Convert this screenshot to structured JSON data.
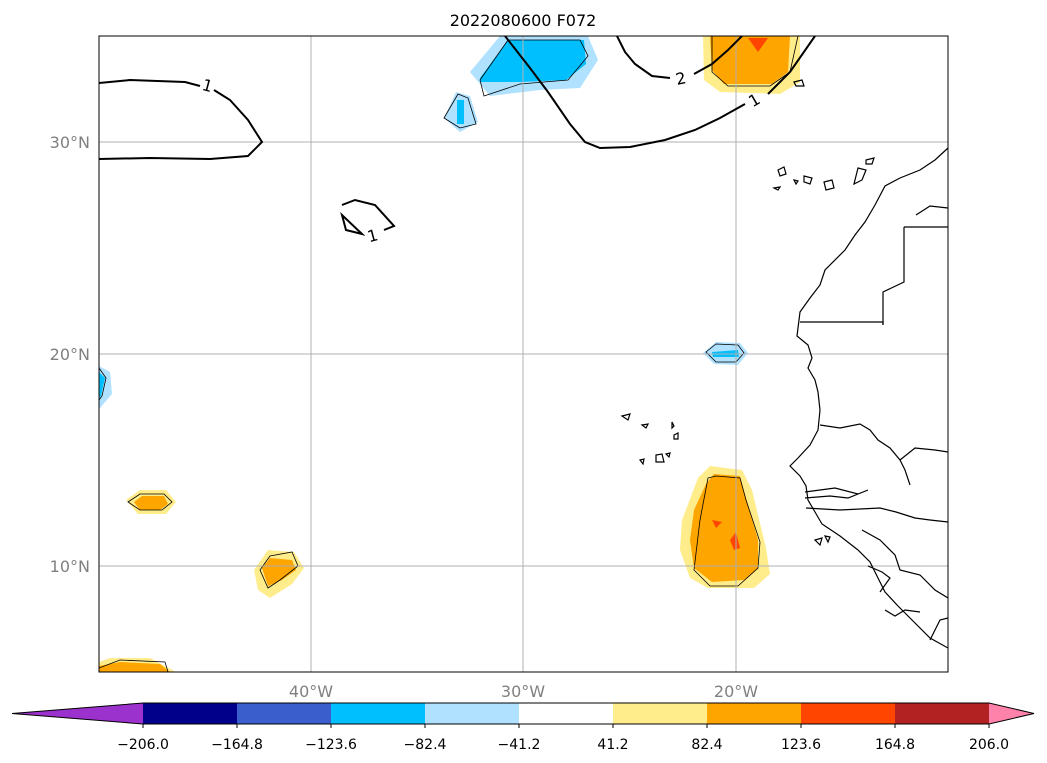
{
  "title": "2022080600 F072",
  "map": {
    "lat_ticks": [
      "30°N",
      "20°N",
      "10°N"
    ],
    "lon_ticks": [
      "40°W",
      "30°W",
      "20°W"
    ],
    "grid": true,
    "extent": {
      "lon": [
        -50,
        -10
      ],
      "lat": [
        5,
        35
      ]
    }
  },
  "contour_labels": [
    "1",
    "2",
    "1",
    "1"
  ],
  "colorbar": {
    "ticks": [
      "−206.0",
      "−164.8",
      "−123.6",
      "−82.4",
      "−41.2",
      "41.2",
      "82.4",
      "123.6",
      "164.8",
      "206.0"
    ],
    "colors": [
      "#9b32cd",
      "#00008b",
      "#3a5fcd",
      "#00bfff",
      "#b0e2ff",
      "#ffffff",
      "#ffec8b",
      "#ffa500",
      "#ff4500",
      "#b22222",
      "#ff82ab"
    ]
  },
  "chart_data": {
    "type": "heatmap",
    "title": "2022080600 F072",
    "xlabel": "",
    "ylabel": "",
    "xlim": [
      -50,
      -10
    ],
    "ylim": [
      5,
      35
    ],
    "levels": [
      -206.0,
      -164.8,
      -123.6,
      -82.4,
      -41.2,
      41.2,
      82.4,
      123.6,
      164.8,
      206.0
    ]
  }
}
